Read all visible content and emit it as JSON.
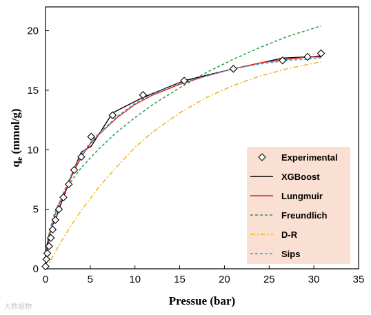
{
  "chart_data": {
    "type": "line",
    "title": "",
    "xlabel": "Pressue (bar)",
    "ylabel_main": "q",
    "ylabel_sub": "e",
    "ylabel_unit": " (mmol/g)",
    "xlim": [
      0,
      35
    ],
    "ylim": [
      0,
      22
    ],
    "xticks": [
      "0",
      "5",
      "10",
      "15",
      "20",
      "25",
      "30",
      "35"
    ],
    "yticks": [
      "0",
      "5",
      "10",
      "15",
      "20"
    ],
    "legend_position": "bottom-right",
    "legend_background": "#f9e0d2",
    "series": [
      {
        "name": "Experimental",
        "style": "marker-diamond",
        "color": "#000000",
        "x": [
          0.0,
          0.1,
          0.2,
          0.4,
          0.6,
          0.8,
          1.1,
          1.5,
          2.0,
          2.6,
          3.2,
          4.0,
          5.1,
          7.5,
          10.9,
          15.5,
          21.0,
          26.5,
          29.3,
          30.8
        ],
        "y": [
          0.2,
          0.8,
          1.3,
          1.9,
          2.6,
          3.3,
          4.1,
          5.0,
          6.0,
          7.1,
          8.3,
          9.4,
          11.1,
          12.9,
          14.6,
          15.8,
          16.8,
          17.5,
          17.8,
          18.1
        ]
      },
      {
        "name": "XGBoost",
        "style": "solid",
        "color": "#000000",
        "x": [
          0.0,
          0.1,
          0.2,
          0.4,
          0.6,
          0.8,
          1.1,
          1.5,
          2.0,
          2.6,
          3.2,
          4.0,
          5.1,
          7.5,
          10.9,
          15.5,
          21.0,
          26.5,
          29.3,
          30.8
        ],
        "y": [
          0.2,
          0.8,
          2.0,
          2.8,
          3.3,
          3.7,
          4.1,
          5.0,
          6.0,
          7.2,
          8.4,
          9.8,
          10.3,
          13.1,
          14.4,
          15.8,
          16.8,
          17.7,
          17.8,
          17.8
        ]
      },
      {
        "name": "Lungmuir",
        "style": "solid",
        "color": "#e8231c",
        "x": [
          0.0,
          0.2,
          0.5,
          1.0,
          1.5,
          2.0,
          3.0,
          4.0,
          5.0,
          6.0,
          8.0,
          10.0,
          12.0,
          15.0,
          18.0,
          21.0,
          24.0,
          27.0,
          30.8
        ],
        "y": [
          0.0,
          1.4,
          2.9,
          4.4,
          5.4,
          6.2,
          7.9,
          9.4,
          10.5,
          11.3,
          12.7,
          13.8,
          14.6,
          15.5,
          16.2,
          16.8,
          17.3,
          17.6,
          17.9
        ]
      },
      {
        "name": "Freundlich",
        "style": "dashed",
        "color": "#22a04a",
        "x": [
          0.0,
          0.2,
          0.5,
          1.0,
          2.0,
          3.0,
          4.0,
          6.0,
          8.0,
          10.0,
          12.0,
          15.0,
          18.0,
          21.0,
          24.0,
          27.0,
          30.8
        ],
        "y": [
          0.0,
          2.2,
          3.3,
          4.7,
          6.3,
          7.5,
          8.5,
          10.1,
          11.5,
          12.7,
          13.8,
          15.2,
          16.5,
          17.6,
          18.6,
          19.5,
          20.4
        ]
      },
      {
        "name": "D-R",
        "style": "dashdot",
        "color": "#f0b41e",
        "x": [
          0.0,
          0.5,
          1.0,
          2.0,
          3.0,
          4.0,
          6.0,
          8.0,
          10.0,
          12.0,
          15.0,
          18.0,
          21.0,
          24.0,
          27.0,
          30.8
        ],
        "y": [
          0.0,
          0.6,
          1.3,
          2.6,
          3.8,
          4.9,
          6.9,
          8.6,
          10.2,
          11.5,
          13.1,
          14.4,
          15.4,
          16.2,
          16.8,
          17.4
        ]
      },
      {
        "name": "Sips",
        "style": "dashed",
        "color": "#3aa0d8",
        "x": [
          0.0,
          0.2,
          0.5,
          1.0,
          1.5,
          2.0,
          3.0,
          4.0,
          5.0,
          6.0,
          8.0,
          10.0,
          12.0,
          15.0,
          18.0,
          21.0,
          24.0,
          27.0,
          30.8
        ],
        "y": [
          0.0,
          1.5,
          3.0,
          4.5,
          5.5,
          6.4,
          8.1,
          9.6,
          10.6,
          11.4,
          12.8,
          13.9,
          14.7,
          15.6,
          16.2,
          16.8,
          17.2,
          17.5,
          17.7
        ]
      }
    ]
  },
  "watermark": "大数据物"
}
